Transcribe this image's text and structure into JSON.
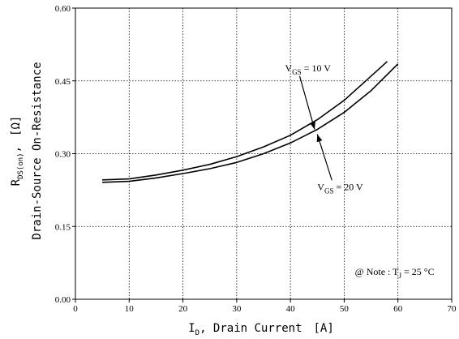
{
  "chart_data": {
    "type": "line",
    "title": "",
    "xlabel": {
      "symbol": "I",
      "subscript": "D",
      "text": ", Drain Current",
      "unit": "[A]"
    },
    "ylabel": {
      "line1_symbol": "R",
      "line1_subscript": "DS(on)",
      "line1_sep": ",",
      "line1_unit": "[Ω]",
      "line2": "Drain-Source On-Resistance"
    },
    "xlim": [
      0,
      70
    ],
    "ylim": [
      0.0,
      0.6
    ],
    "xticks": [
      "0",
      "10",
      "20",
      "30",
      "40",
      "50",
      "60",
      "70"
    ],
    "yticks": [
      "0.00",
      "0.15",
      "0.30",
      "0.45",
      "0.60"
    ],
    "grid": true,
    "series": [
      {
        "name": "VGS = 10 V",
        "x": [
          5,
          10,
          15,
          20,
          25,
          30,
          35,
          40,
          45,
          50,
          55,
          58
        ],
        "y": [
          0.246,
          0.248,
          0.256,
          0.266,
          0.278,
          0.294,
          0.314,
          0.338,
          0.37,
          0.41,
          0.46,
          0.49
        ]
      },
      {
        "name": "VGS = 20 V",
        "x": [
          5,
          10,
          15,
          20,
          25,
          30,
          35,
          40,
          45,
          50,
          55,
          60
        ],
        "y": [
          0.241,
          0.243,
          0.25,
          0.259,
          0.269,
          0.282,
          0.3,
          0.322,
          0.35,
          0.385,
          0.43,
          0.485
        ]
      }
    ],
    "annotations": [
      {
        "symbol": "V",
        "subscript": "GS",
        "text": " = 10 V",
        "at": [
          39,
          0.47
        ],
        "points_to": [
          44.5,
          0.35
        ]
      },
      {
        "symbol": "V",
        "subscript": "GS",
        "text": " = 20 V",
        "at": [
          45,
          0.225
        ],
        "points_to": [
          45,
          0.34
        ]
      },
      {
        "prefix": "@ Note : T",
        "subscript": "J",
        "text": " = 25 ",
        "unit": "°C",
        "at": [
          52,
          0.05
        ]
      }
    ]
  }
}
